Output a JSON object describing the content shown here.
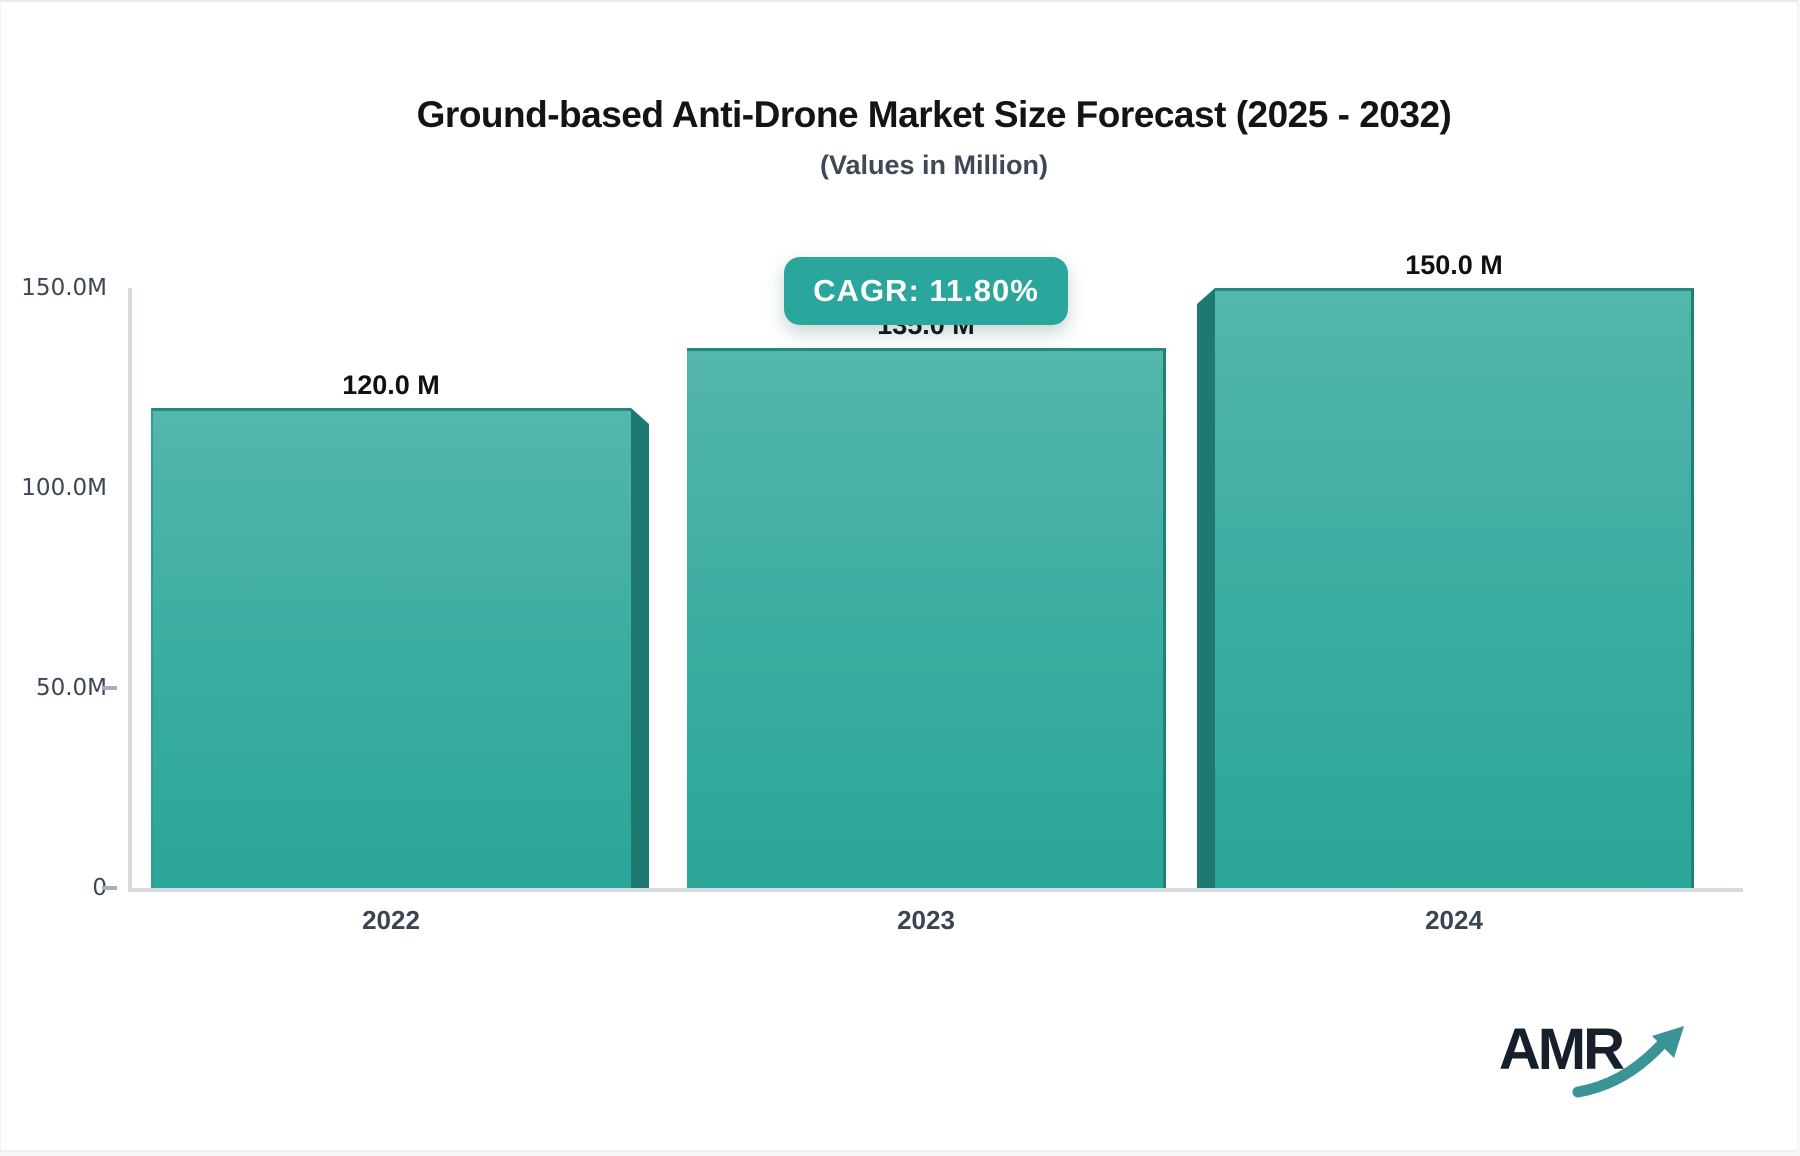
{
  "chart_data": {
    "type": "bar",
    "title": "Ground-based Anti-Drone Market Size Forecast (2025 - 2032)",
    "subtitle": "(Values in Million)",
    "categories": [
      "2022",
      "2023",
      "2024"
    ],
    "values": [
      120.0,
      135.0,
      150.0
    ],
    "bar_labels": [
      "120.0 M",
      "135.0 M",
      "150.0 M"
    ],
    "y_ticks": [
      "150.0M",
      "100.0M",
      "50.0M",
      "0"
    ],
    "ylabel": "",
    "xlabel": "",
    "ylim": [
      0,
      150
    ],
    "grid": false,
    "legend_position": "none",
    "cagr_badge": "CAGR: 11.80%",
    "colors": {
      "bar_face_top": "#54b6ad",
      "bar_face_bottom": "#2ba69a",
      "bar_side_dark": "#1e7a70",
      "bar_top_border": "#23887e",
      "badge_background": "#2aa69c",
      "axis_line": "#d7dade",
      "tick_text": "#3d4656",
      "value_text": "#0f1115"
    }
  },
  "branding": {
    "logo_text": "AMR",
    "logo_arrow_color": "#3a9496"
  }
}
